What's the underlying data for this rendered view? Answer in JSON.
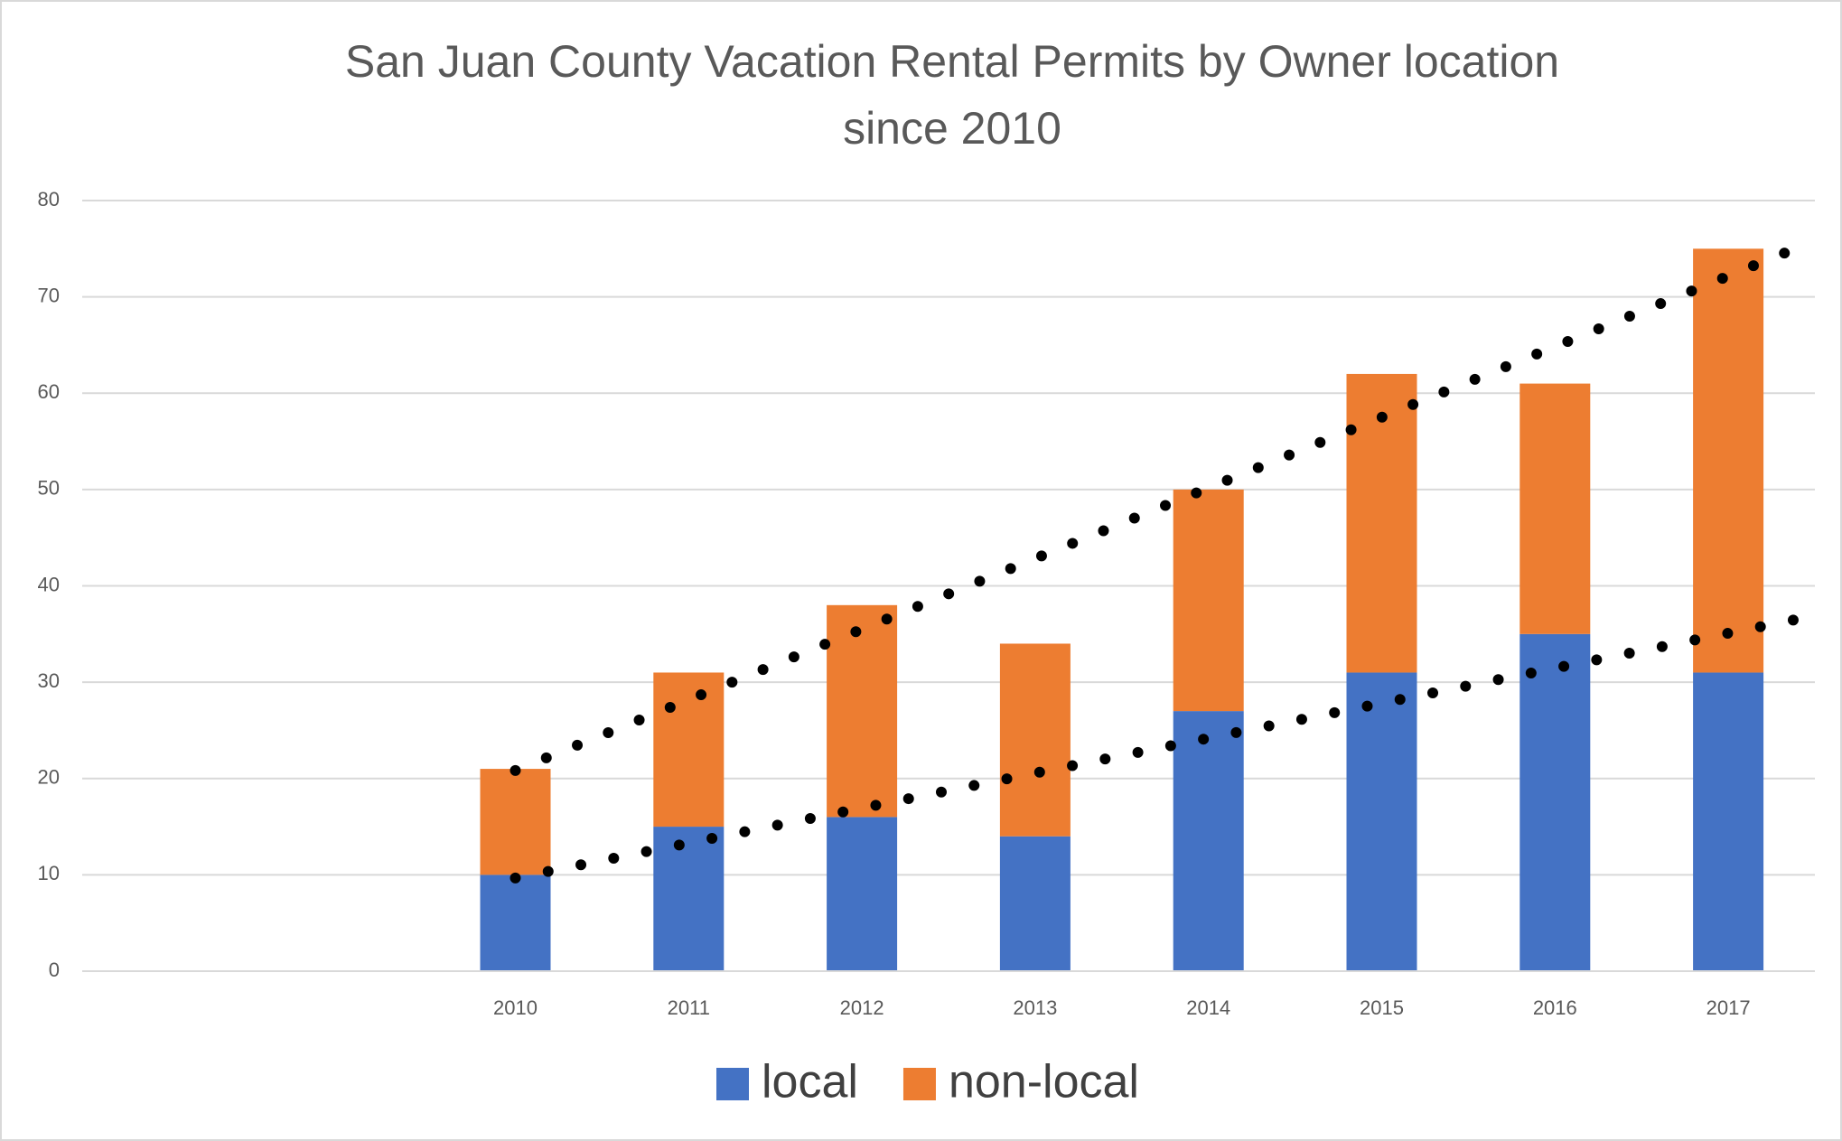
{
  "chart_data": {
    "type": "bar",
    "stacked": true,
    "title": "San Juan County Vacation Rental Permits by Owner location",
    "subtitle": "since 2010",
    "categories": [
      null,
      null,
      "2010",
      "2011",
      "2012",
      "2013",
      "2014",
      "2015",
      "2016",
      "2017"
    ],
    "series": [
      {
        "name": "local",
        "color": "#4472c4",
        "values": [
          null,
          null,
          10,
          15,
          16,
          14,
          27,
          31,
          35,
          31
        ]
      },
      {
        "name": "non-local",
        "color": "#ed7d31",
        "values": [
          null,
          null,
          11,
          16,
          22,
          20,
          23,
          31,
          26,
          44
        ]
      }
    ],
    "ylim": [
      0,
      80
    ],
    "yticks": [
      0,
      10,
      20,
      30,
      40,
      50,
      60,
      70,
      80
    ],
    "grid": true,
    "legend": "bottom",
    "trendlines": true
  }
}
